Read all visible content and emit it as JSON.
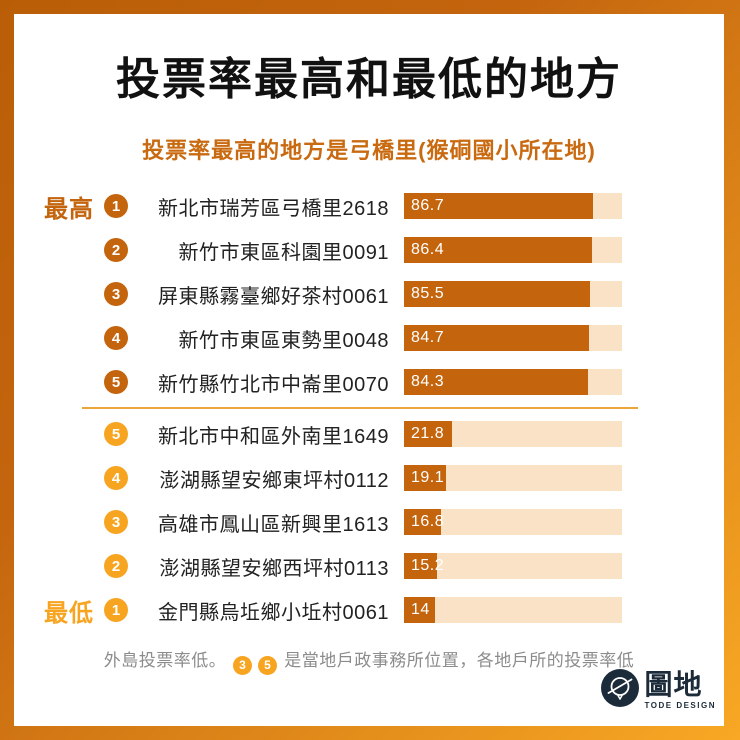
{
  "colors": {
    "frame_gradient_start": "#b95e07",
    "frame_gradient_end": "#f8a824",
    "dark_orange": "#c4650e",
    "amber": "#f7a521",
    "bar_track": "#fae2c7",
    "divider_orange": "#eda63a",
    "subtitle_orange": "#c96a10",
    "title_black": "#111111",
    "footnote_gray": "#8c8c8c",
    "logo_navy": "#1c2b3a",
    "background": "#ffffff"
  },
  "header": {
    "title": "投票率最高和最低的地方",
    "subtitle": "投票率最高的地方是弓橋里(猴硐國小所在地)"
  },
  "chart_data": {
    "type": "bar",
    "orientation": "horizontal",
    "xlim": [
      0,
      100
    ],
    "value_label": "投票率",
    "rows": [
      {
        "tier": "high",
        "group_label": "最高",
        "rank": 1,
        "place": "新北市瑞芳區弓橋里2618",
        "value": 86.7,
        "display": "86.7"
      },
      {
        "tier": "high",
        "group_label": "",
        "rank": 2,
        "place": "新竹市東區科園里0091",
        "value": 86.4,
        "display": "86.4"
      },
      {
        "tier": "high",
        "group_label": "",
        "rank": 3,
        "place": "屏東縣霧臺鄉好茶村0061",
        "value": 85.5,
        "display": "85.5"
      },
      {
        "tier": "high",
        "group_label": "",
        "rank": 4,
        "place": "新竹市東區東勢里0048",
        "value": 84.7,
        "display": "84.7"
      },
      {
        "tier": "high",
        "group_label": "",
        "rank": 5,
        "place": "新竹縣竹北市中崙里0070",
        "value": 84.3,
        "display": "84.3"
      },
      {
        "tier": "low",
        "group_label": "",
        "rank": 5,
        "place": "新北市中和區外南里1649",
        "value": 21.8,
        "display": "21.8"
      },
      {
        "tier": "low",
        "group_label": "",
        "rank": 4,
        "place": "澎湖縣望安鄉東坪村0112",
        "value": 19.1,
        "display": "19.1"
      },
      {
        "tier": "low",
        "group_label": "",
        "rank": 3,
        "place": "高雄市鳳山區新興里1613",
        "value": 16.8,
        "display": "16.8"
      },
      {
        "tier": "low",
        "group_label": "",
        "rank": 2,
        "place": "澎湖縣望安鄉西坪村0113",
        "value": 15.2,
        "display": "15.2"
      },
      {
        "tier": "low",
        "group_label": "最低",
        "rank": 1,
        "place": "金門縣烏坵鄉小坵村0061",
        "value": 14,
        "display": "14"
      }
    ]
  },
  "footnote": {
    "part1": "外島投票率低。",
    "badge1": "3",
    "badge2": "5",
    "part2": "是當地戶政事務所位置，各地戶所的投票率低"
  },
  "logo": {
    "name": "圖地",
    "subtitle": "TODE DESIGN"
  }
}
